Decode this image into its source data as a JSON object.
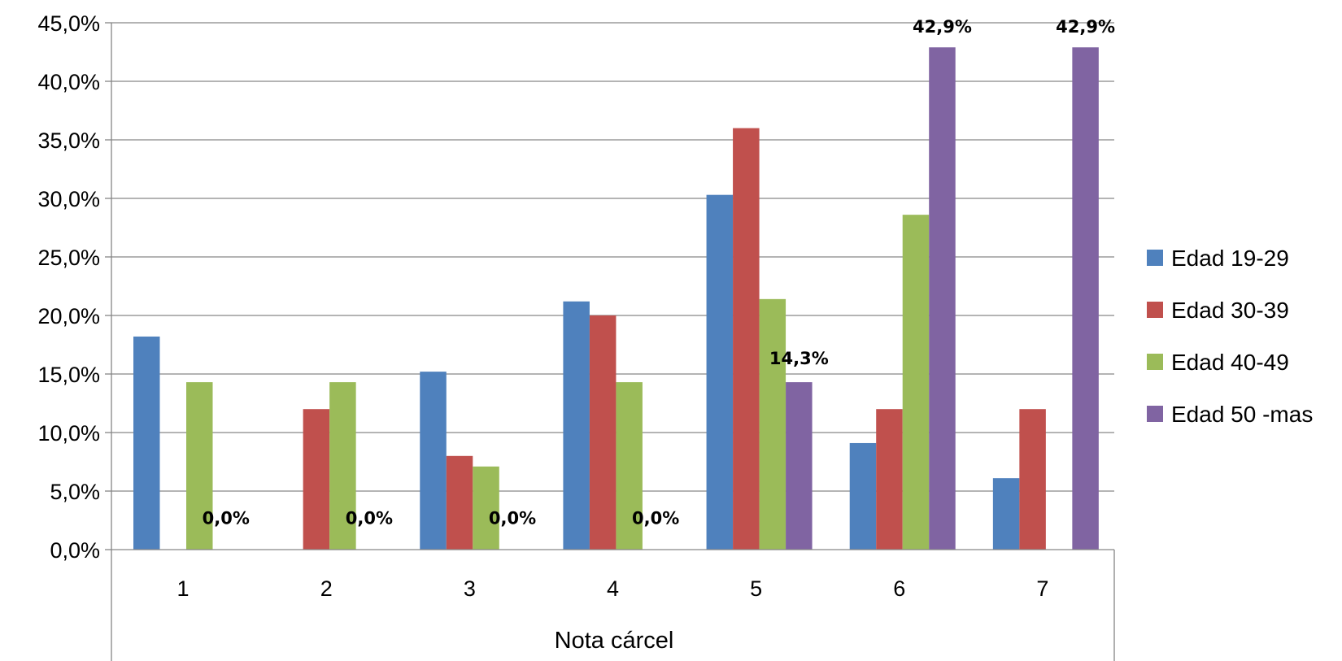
{
  "chart_data": {
    "type": "bar",
    "title": "",
    "xlabel": "Nota cárcel",
    "ylabel": "",
    "categories": [
      "1",
      "2",
      "3",
      "4",
      "5",
      "6",
      "7"
    ],
    "ylim": [
      0,
      45
    ],
    "yticks": [
      0,
      5,
      10,
      15,
      20,
      25,
      30,
      35,
      40,
      45
    ],
    "ytick_labels": [
      "0,0%",
      "5,0%",
      "10,0%",
      "15,0%",
      "20,0%",
      "25,0%",
      "30,0%",
      "35,0%",
      "40,0%",
      "45,0%"
    ],
    "grid": true,
    "legend_position": "right",
    "series": [
      {
        "name": "Edad 19-29",
        "color": "#4F81BD",
        "values": [
          18.2,
          0.0,
          15.2,
          21.2,
          30.3,
          9.1,
          6.1
        ]
      },
      {
        "name": "Edad 30-39",
        "color": "#C0504D",
        "values": [
          0.0,
          12.0,
          8.0,
          20.0,
          36.0,
          12.0,
          12.0
        ]
      },
      {
        "name": "Edad 40-49",
        "color": "#9BBB59",
        "values": [
          14.3,
          14.3,
          7.1,
          14.3,
          21.4,
          28.6,
          0.0
        ]
      },
      {
        "name": "Edad 50 -mas",
        "color": "#8064A2",
        "values": [
          0.0,
          0.0,
          0.0,
          0.0,
          14.3,
          42.9,
          42.9
        ]
      }
    ],
    "data_labels": [
      {
        "series": 3,
        "category": 0,
        "text": "0,0%"
      },
      {
        "series": 3,
        "category": 1,
        "text": "0,0%"
      },
      {
        "series": 3,
        "category": 2,
        "text": "0,0%"
      },
      {
        "series": 3,
        "category": 3,
        "text": "0,0%"
      },
      {
        "series": 3,
        "category": 4,
        "text": "14,3%"
      },
      {
        "series": 3,
        "category": 5,
        "text": "42,9%"
      },
      {
        "series": 3,
        "category": 6,
        "text": "42,9%"
      }
    ]
  }
}
